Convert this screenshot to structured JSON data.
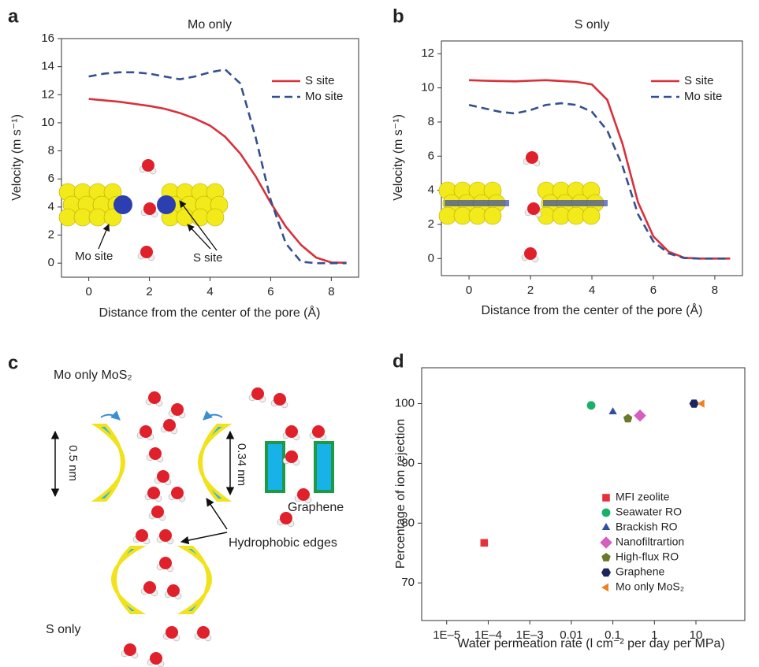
{
  "chart_data": [
    {
      "type": "line",
      "panel_label": "a",
      "title": "Mo only",
      "x_label": "Distance from the center of the pore (Å)",
      "y_label": "Velocity (m s⁻¹)",
      "x": [
        0,
        0.5,
        1,
        1.5,
        2,
        2.5,
        3,
        3.5,
        4,
        4.5,
        5,
        5.5,
        6,
        6.5,
        7,
        7.5,
        8,
        8.5
      ],
      "series": [
        {
          "name": "S site",
          "color": "#d9303a",
          "linestyle": "solid",
          "values": [
            11.7,
            11.6,
            11.5,
            11.35,
            11.2,
            11.0,
            10.7,
            10.3,
            9.8,
            9.0,
            7.8,
            6.2,
            4.3,
            2.6,
            1.3,
            0.4,
            0.05,
            0.03
          ]
        },
        {
          "name": "Mo site",
          "color": "#34508f",
          "linestyle": "dashed",
          "values": [
            13.3,
            13.5,
            13.6,
            13.6,
            13.5,
            13.3,
            13.1,
            13.3,
            13.6,
            13.8,
            12.8,
            9.0,
            4.5,
            1.4,
            0.1,
            0.0,
            0.0,
            0.0
          ]
        }
      ],
      "xlim": [
        -0.9,
        8.9
      ],
      "xticks": [
        0,
        2,
        4,
        6,
        8
      ],
      "ylim": [
        -1,
        16
      ],
      "yticks": [
        0,
        2,
        4,
        6,
        8,
        10,
        12,
        14,
        16
      ],
      "legend": "upper right",
      "annotations": [
        "Mo site",
        "S site"
      ]
    },
    {
      "type": "line",
      "panel_label": "b",
      "title": "S only",
      "x_label": "Distance from the center of the pore (Å)",
      "y_label": "Velocity (m s⁻¹)",
      "x": [
        0,
        0.5,
        1,
        1.5,
        2,
        2.5,
        3,
        3.5,
        4,
        4.5,
        5,
        5.5,
        6,
        6.5,
        7,
        7.5,
        8,
        8.5
      ],
      "series": [
        {
          "name": "S site",
          "color": "#d9303a",
          "linestyle": "solid",
          "values": [
            10.45,
            10.42,
            10.4,
            10.38,
            10.42,
            10.45,
            10.4,
            10.35,
            10.2,
            9.3,
            6.7,
            3.3,
            1.3,
            0.4,
            0.05,
            0.0,
            0.0,
            0.0
          ]
        },
        {
          "name": "Mo site",
          "color": "#34508f",
          "linestyle": "dashed",
          "values": [
            9.0,
            8.8,
            8.6,
            8.5,
            8.7,
            9.0,
            9.1,
            9.0,
            8.6,
            7.5,
            5.4,
            2.6,
            1.0,
            0.3,
            0.03,
            0.0,
            0.0,
            0.0
          ]
        }
      ],
      "xlim": [
        -0.9,
        8.9
      ],
      "xticks": [
        0,
        2,
        4,
        6,
        8
      ],
      "ylim": [
        -1,
        12.75
      ],
      "yticks": [
        0,
        2,
        4,
        6,
        8,
        10,
        12
      ],
      "legend": "upper right"
    },
    {
      "type": "scatter",
      "panel_label": "d",
      "x_label": "Water permeation rate (l cm⁻² per day per MPa)",
      "y_label": "Percentage of ion rejection",
      "xscale": "log",
      "series": [
        {
          "name": "MFI zeolite",
          "color": "#e8303c",
          "marker": "square",
          "x": [
            8e-05
          ],
          "values": [
            76.7
          ]
        },
        {
          "name": "Seawater RO",
          "color": "#19b06a",
          "marker": "circle",
          "x": [
            0.03
          ],
          "values": [
            99.7
          ]
        },
        {
          "name": "Brackish RO",
          "color": "#2e4fa3",
          "marker": "triangle",
          "x": [
            0.1
          ],
          "values": [
            98.6
          ]
        },
        {
          "name": "Nanofiltrartion",
          "color": "#d55fc0",
          "marker": "diamond",
          "x": [
            0.45
          ],
          "values": [
            98.0
          ]
        },
        {
          "name": "High-flux RO",
          "color": "#6b7a2a",
          "marker": "pentagon",
          "x": [
            0.23
          ],
          "values": [
            97.5
          ]
        },
        {
          "name": "Graphene",
          "color": "#1c2560",
          "marker": "hexagon",
          "x": [
            9
          ],
          "values": [
            100
          ]
        },
        {
          "name": "Mo only MoS₂",
          "color": "#f07f22",
          "marker": "triangle-left",
          "x": [
            14
          ],
          "values": [
            100
          ]
        }
      ],
      "xlim": [
        2.5e-06,
        150
      ],
      "xticks": [
        {
          "value": 1e-05,
          "label": "1E–5"
        },
        {
          "value": 0.0001,
          "label": "1E–4"
        },
        {
          "value": 0.001,
          "label": "1E–3"
        },
        0.01,
        0.1,
        1,
        10
      ],
      "ylim": [
        63.7,
        106
      ],
      "yticks": [
        70,
        80,
        90,
        100
      ],
      "legend": "lower right"
    }
  ],
  "diagram": {
    "panel_label": "c",
    "title": "Mo only MoS₂",
    "pore_width_label": "0.5 nm",
    "graphene_width_label": "0.34 nm",
    "graphene_label": "Graphene",
    "edges_label": "Hydrophobic edges",
    "bottom_label": "S only"
  }
}
